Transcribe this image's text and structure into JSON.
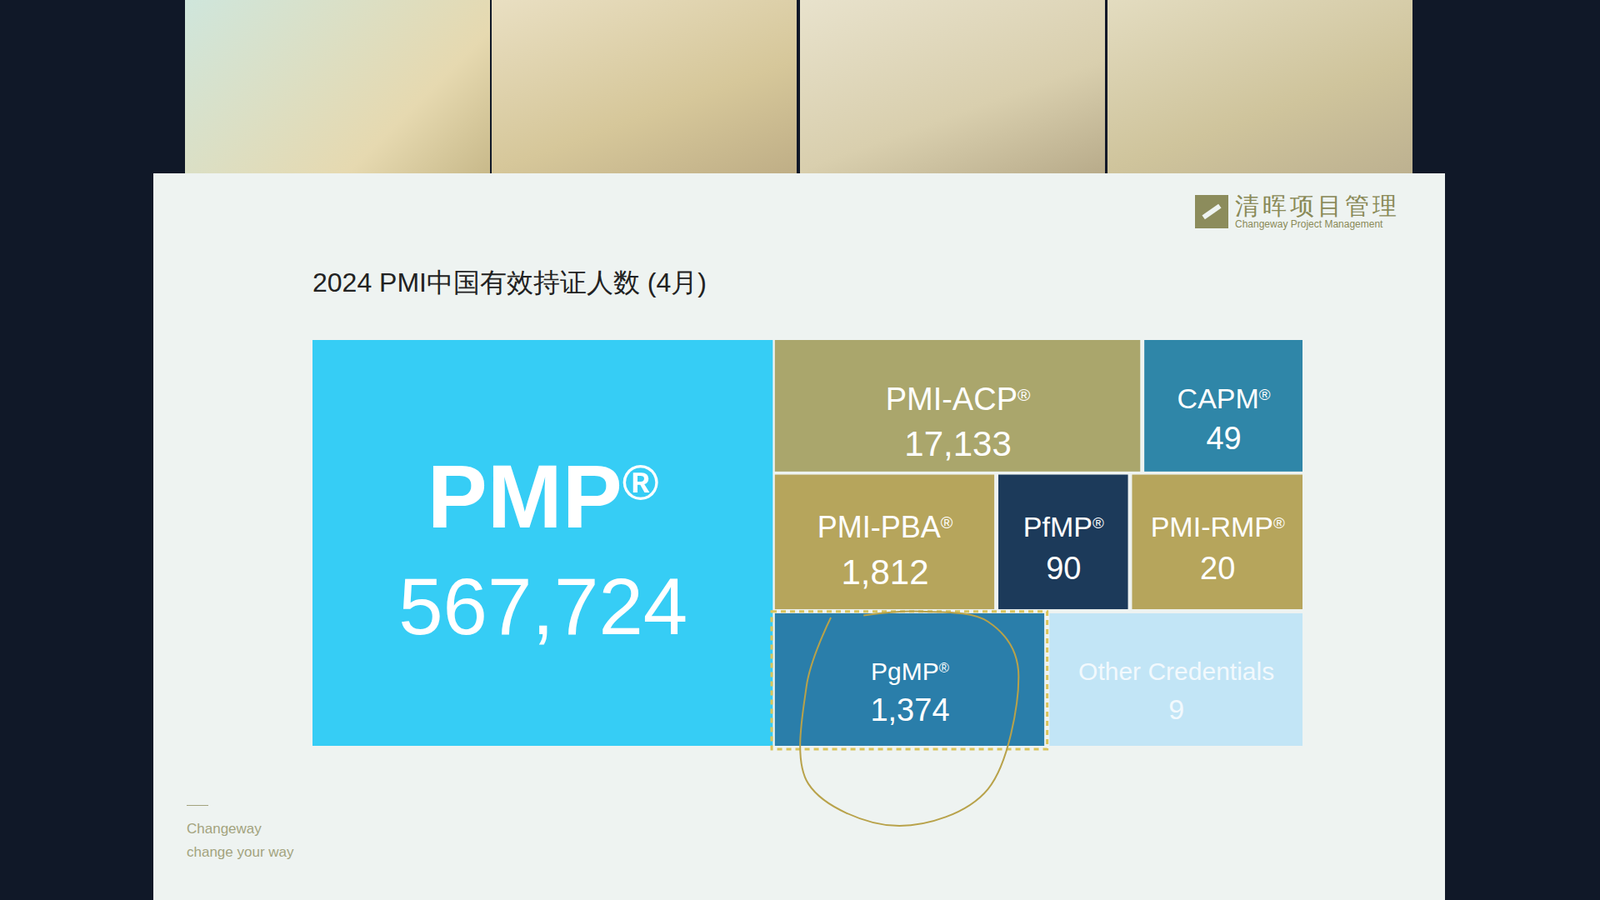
{
  "chart_data": {
    "type": "treemap",
    "title": "2024 PMI中国有效持证人数 (4月)",
    "categories": [
      "PMP®",
      "PMI-ACP®",
      "CAPM®",
      "PMI-PBA®",
      "PfMP®",
      "PMI-RMP®",
      "PgMP®",
      "Other Credentials"
    ],
    "values": [
      567724,
      17133,
      49,
      1812,
      90,
      20,
      1374,
      9
    ],
    "value_labels": [
      "567,724",
      "17,133",
      "49",
      "1,812",
      "90",
      "20",
      "1,374",
      "9"
    ],
    "colors": [
      "#36cdf5",
      "#aaa66c",
      "#2f86a8",
      "#b6a55c",
      "#1c3a5a",
      "#b6a55c",
      "#2a7eaa",
      "#c2e5f6"
    ],
    "data_labels": true
  },
  "slide": {
    "logo": {
      "name": "清晖项目管理",
      "subtitle": "Changeway Project Management"
    },
    "footer": [
      "Changeway",
      "change your way"
    ]
  }
}
